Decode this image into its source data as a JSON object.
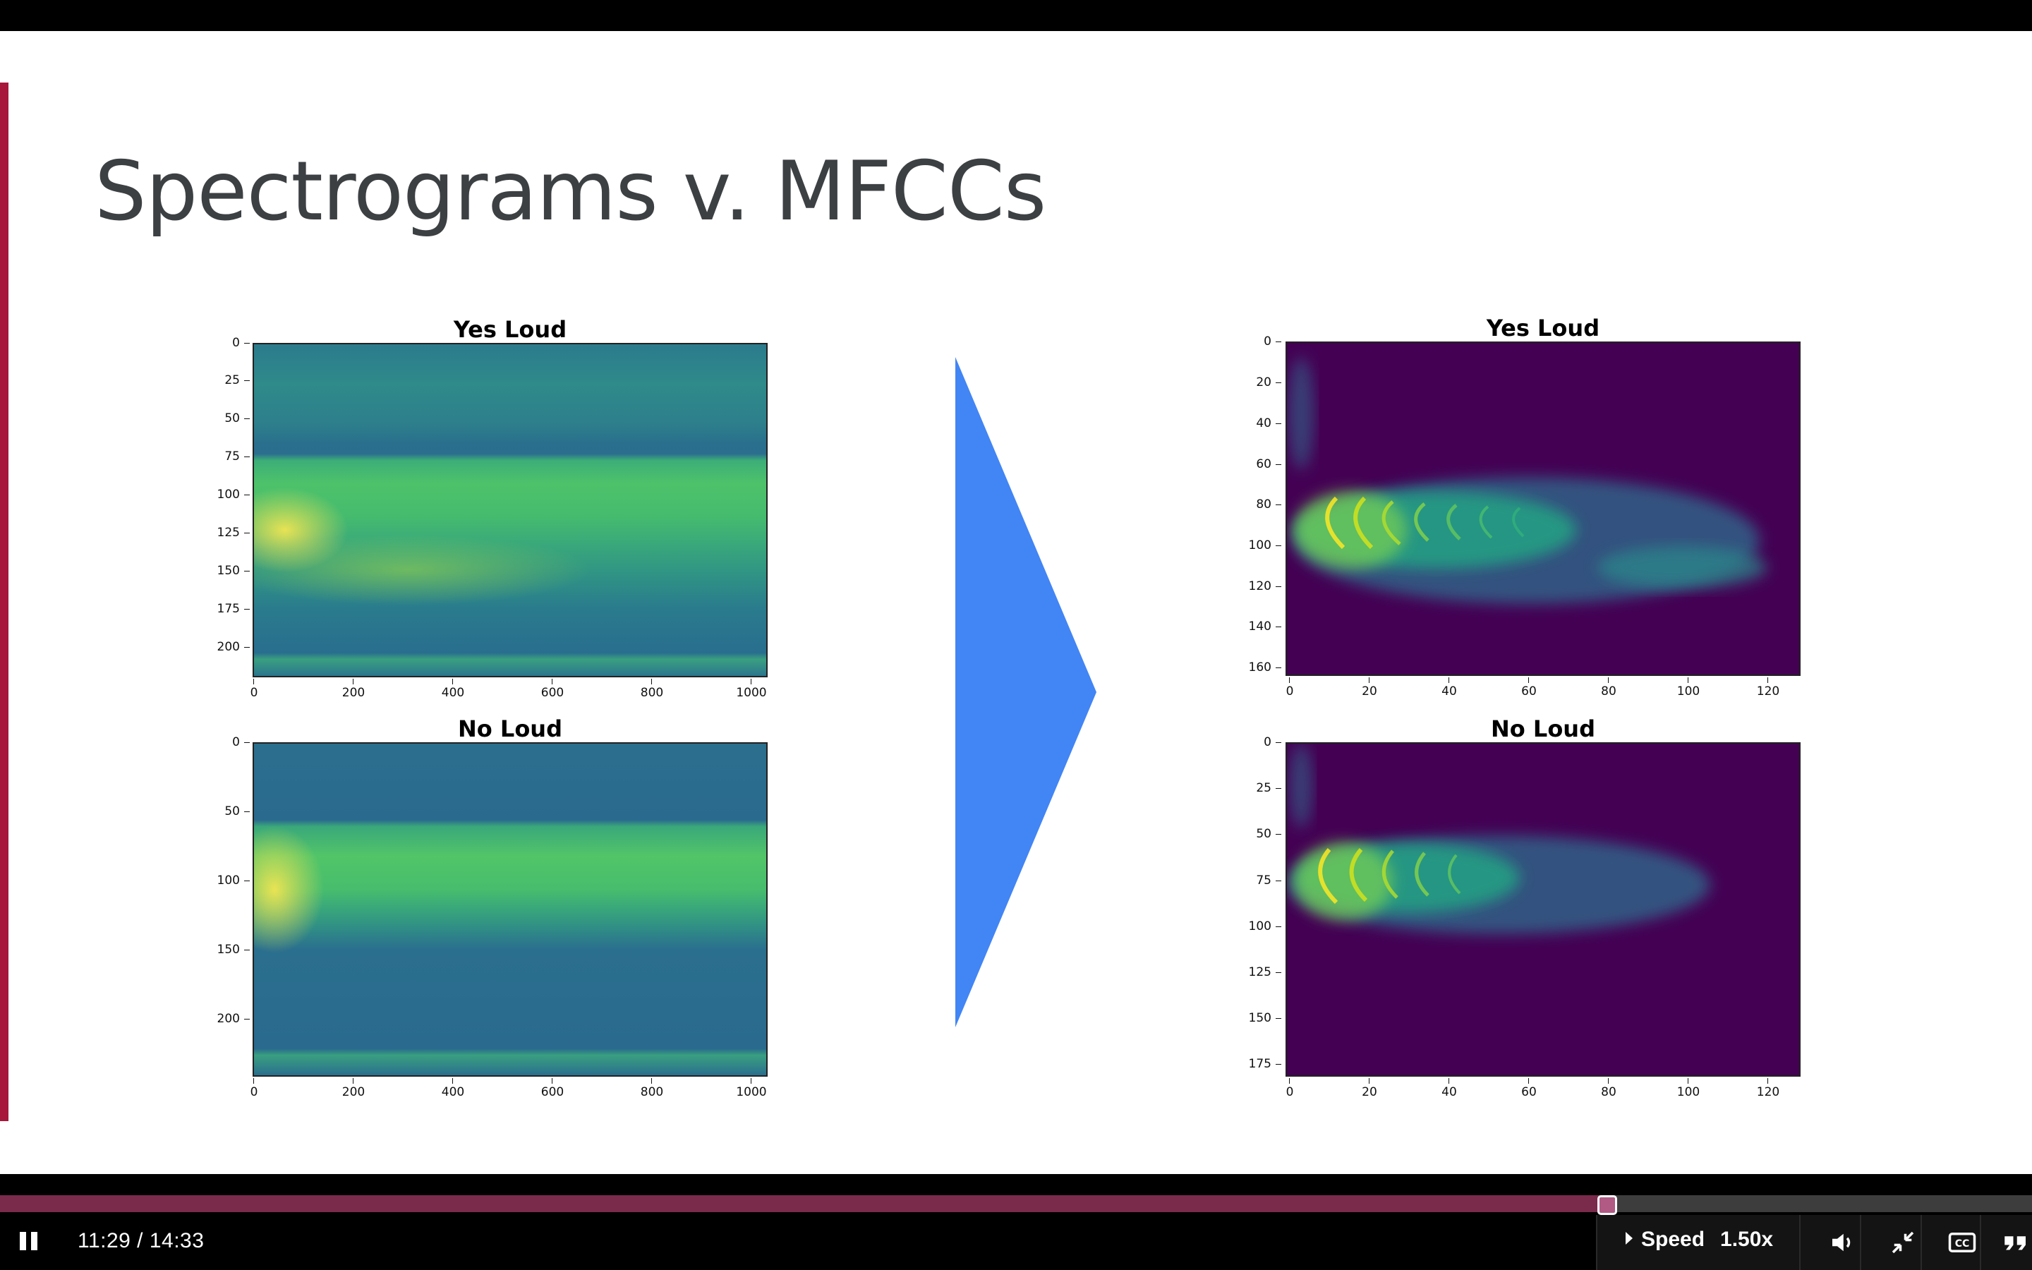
{
  "slide": {
    "title": "Spectrograms v. MFCCs",
    "accent_color": "#a6173b",
    "arrow_color": "#4285f4"
  },
  "plots": {
    "spec_yes": {
      "title": "Yes Loud",
      "y_ticks": [
        "0",
        "25",
        "50",
        "75",
        "100",
        "125",
        "150",
        "175",
        "200"
      ],
      "x_ticks": [
        "0",
        "200",
        "400",
        "600",
        "800",
        "1000"
      ]
    },
    "spec_no": {
      "title": "No Loud",
      "y_ticks": [
        "0",
        "50",
        "100",
        "150",
        "200"
      ],
      "x_ticks": [
        "0",
        "200",
        "400",
        "600",
        "800",
        "1000"
      ]
    },
    "mfcc_yes": {
      "title": "Yes Loud",
      "y_ticks": [
        "0",
        "20",
        "40",
        "60",
        "80",
        "100",
        "120",
        "140",
        "160"
      ],
      "x_ticks": [
        "0",
        "20",
        "40",
        "60",
        "80",
        "100",
        "120"
      ]
    },
    "mfcc_no": {
      "title": "No Loud",
      "y_ticks": [
        "0",
        "25",
        "50",
        "75",
        "100",
        "125",
        "150",
        "175"
      ],
      "x_ticks": [
        "0",
        "20",
        "40",
        "60",
        "80",
        "100",
        "120"
      ]
    }
  },
  "player": {
    "time": "11:29 / 14:33",
    "progress_fraction": 0.7911,
    "speed_label": "Speed",
    "speed_value": "1.50x",
    "progress_color": "#7a2a4b",
    "icons": {
      "pause": "pause-icon",
      "volume": "volume-icon",
      "exit_fullscreen": "exit-fullscreen-icon",
      "captions": "closed-captions-icon",
      "transcript": "quote-icon"
    }
  }
}
